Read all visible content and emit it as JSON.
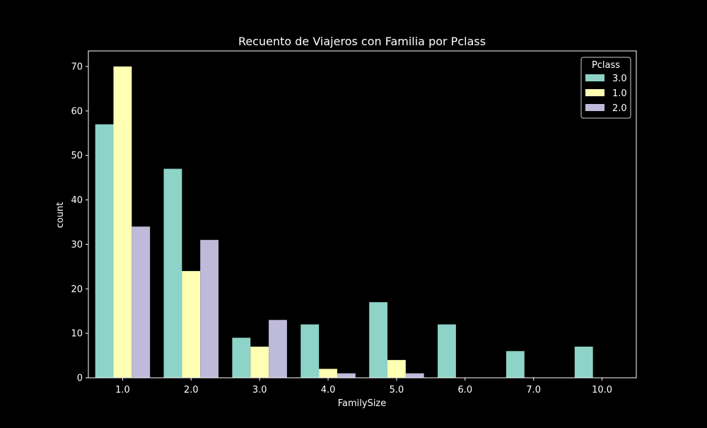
{
  "chart_data": {
    "type": "bar",
    "title": "Recuento de Viajeros con Familia por Pclass",
    "xlabel": "FamilySize",
    "ylabel": "count",
    "categories": [
      "1.0",
      "2.0",
      "3.0",
      "4.0",
      "5.0",
      "6.0",
      "7.0",
      "10.0"
    ],
    "ylim": [
      0,
      73.5
    ],
    "yticks": [
      0,
      10,
      20,
      30,
      40,
      50,
      60,
      70
    ],
    "grid": false,
    "legend": {
      "title": "Pclass",
      "position": "top-right"
    },
    "series": [
      {
        "name": "3.0",
        "color": "#8dd3c7",
        "values": [
          57,
          47,
          9,
          12,
          17,
          12,
          6,
          7
        ]
      },
      {
        "name": "1.0",
        "color": "#ffffb3",
        "values": [
          70,
          24,
          7,
          2,
          4,
          0,
          0,
          0
        ]
      },
      {
        "name": "2.0",
        "color": "#bebada",
        "values": [
          34,
          31,
          13,
          1,
          1,
          0,
          0,
          0
        ]
      }
    ]
  }
}
